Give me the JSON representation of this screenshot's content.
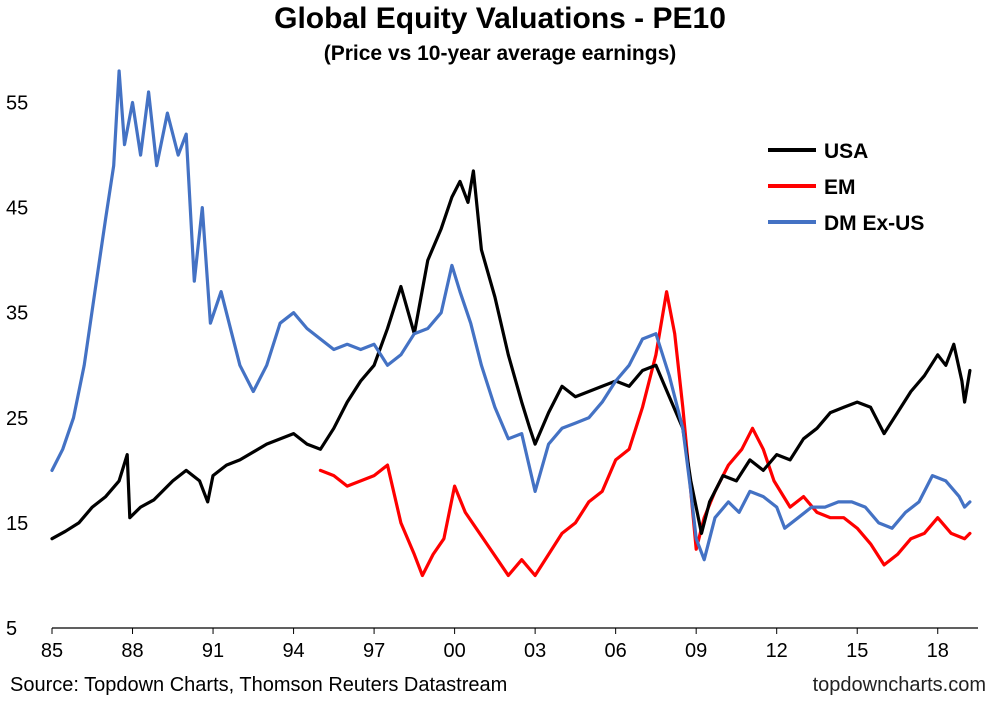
{
  "chart_data": {
    "type": "line",
    "title": "Global Equity Valuations - PE10",
    "subtitle": "(Price vs 10-year average earnings)",
    "source": "Source: Topdown Charts, Thomson Reuters Datastream",
    "brand": "topdowncharts.com",
    "xlabel": "",
    "ylabel": "",
    "xlim": [
      1985,
      2019.5
    ],
    "ylim": [
      5,
      60
    ],
    "x_ticks": [
      1985,
      1988,
      1991,
      1994,
      1997,
      2000,
      2003,
      2006,
      2009,
      2012,
      2015,
      2018
    ],
    "x_tick_labels": [
      "85",
      "88",
      "91",
      "94",
      "97",
      "00",
      "03",
      "06",
      "09",
      "12",
      "15",
      "18"
    ],
    "y_ticks": [
      5,
      15,
      25,
      35,
      45,
      55
    ],
    "grid": false,
    "legend_position": "top-right",
    "series": [
      {
        "name": "USA",
        "color": "#000000",
        "points": [
          [
            1985.0,
            13.5
          ],
          [
            1985.5,
            14.2
          ],
          [
            1986.0,
            15.0
          ],
          [
            1986.5,
            16.5
          ],
          [
            1987.0,
            17.5
          ],
          [
            1987.5,
            19.0
          ],
          [
            1987.8,
            21.5
          ],
          [
            1987.9,
            15.5
          ],
          [
            1988.3,
            16.5
          ],
          [
            1988.8,
            17.2
          ],
          [
            1989.5,
            19.0
          ],
          [
            1990.0,
            20.0
          ],
          [
            1990.5,
            19.0
          ],
          [
            1990.8,
            17.0
          ],
          [
            1991.0,
            19.5
          ],
          [
            1991.5,
            20.5
          ],
          [
            1992.0,
            21.0
          ],
          [
            1993.0,
            22.5
          ],
          [
            1994.0,
            23.5
          ],
          [
            1994.5,
            22.5
          ],
          [
            1995.0,
            22.0
          ],
          [
            1995.5,
            24.0
          ],
          [
            1996.0,
            26.5
          ],
          [
            1996.5,
            28.5
          ],
          [
            1997.0,
            30.0
          ],
          [
            1997.5,
            33.5
          ],
          [
            1998.0,
            37.5
          ],
          [
            1998.5,
            33.0
          ],
          [
            1999.0,
            40.0
          ],
          [
            1999.5,
            43.0
          ],
          [
            1999.9,
            46.0
          ],
          [
            2000.2,
            47.5
          ],
          [
            2000.5,
            45.5
          ],
          [
            2000.7,
            48.5
          ],
          [
            2001.0,
            41.0
          ],
          [
            2001.5,
            36.5
          ],
          [
            2002.0,
            31.0
          ],
          [
            2002.5,
            26.5
          ],
          [
            2002.8,
            24.0
          ],
          [
            2003.0,
            22.5
          ],
          [
            2003.5,
            25.5
          ],
          [
            2004.0,
            28.0
          ],
          [
            2004.5,
            27.0
          ],
          [
            2005.0,
            27.5
          ],
          [
            2005.5,
            28.0
          ],
          [
            2006.0,
            28.5
          ],
          [
            2006.5,
            28.0
          ],
          [
            2007.0,
            29.5
          ],
          [
            2007.5,
            30.0
          ],
          [
            2008.0,
            27.0
          ],
          [
            2008.5,
            24.0
          ],
          [
            2008.8,
            19.0
          ],
          [
            2009.2,
            14.0
          ],
          [
            2009.5,
            17.0
          ],
          [
            2010.0,
            19.5
          ],
          [
            2010.5,
            19.0
          ],
          [
            2011.0,
            21.0
          ],
          [
            2011.5,
            20.0
          ],
          [
            2012.0,
            21.5
          ],
          [
            2012.5,
            21.0
          ],
          [
            2013.0,
            23.0
          ],
          [
            2013.5,
            24.0
          ],
          [
            2014.0,
            25.5
          ],
          [
            2014.5,
            26.0
          ],
          [
            2015.0,
            26.5
          ],
          [
            2015.5,
            26.0
          ],
          [
            2016.0,
            23.5
          ],
          [
            2016.5,
            25.5
          ],
          [
            2017.0,
            27.5
          ],
          [
            2017.5,
            29.0
          ],
          [
            2018.0,
            31.0
          ],
          [
            2018.3,
            30.0
          ],
          [
            2018.6,
            32.0
          ],
          [
            2018.9,
            28.5
          ],
          [
            2019.0,
            26.5
          ],
          [
            2019.2,
            29.5
          ]
        ]
      },
      {
        "name": "EM",
        "color": "#ff0000",
        "points": [
          [
            1995.0,
            20.0
          ],
          [
            1995.5,
            19.5
          ],
          [
            1996.0,
            18.5
          ],
          [
            1996.5,
            19.0
          ],
          [
            1997.0,
            19.5
          ],
          [
            1997.5,
            20.5
          ],
          [
            1998.0,
            15.0
          ],
          [
            1998.5,
            12.0
          ],
          [
            1998.8,
            10.0
          ],
          [
            1999.2,
            12.0
          ],
          [
            1999.6,
            13.5
          ],
          [
            2000.0,
            18.5
          ],
          [
            2000.4,
            16.0
          ],
          [
            2000.8,
            14.5
          ],
          [
            2001.2,
            13.0
          ],
          [
            2001.6,
            11.5
          ],
          [
            2002.0,
            10.0
          ],
          [
            2002.5,
            11.5
          ],
          [
            2003.0,
            10.0
          ],
          [
            2003.5,
            12.0
          ],
          [
            2004.0,
            14.0
          ],
          [
            2004.5,
            15.0
          ],
          [
            2005.0,
            17.0
          ],
          [
            2005.5,
            18.0
          ],
          [
            2006.0,
            21.0
          ],
          [
            2006.5,
            22.0
          ],
          [
            2007.0,
            26.0
          ],
          [
            2007.5,
            31.0
          ],
          [
            2007.9,
            37.0
          ],
          [
            2008.2,
            33.0
          ],
          [
            2008.5,
            26.0
          ],
          [
            2008.8,
            18.0
          ],
          [
            2009.0,
            12.5
          ],
          [
            2009.3,
            15.5
          ],
          [
            2009.7,
            18.0
          ],
          [
            2010.2,
            20.5
          ],
          [
            2010.7,
            22.0
          ],
          [
            2011.1,
            24.0
          ],
          [
            2011.5,
            22.0
          ],
          [
            2011.9,
            19.0
          ],
          [
            2012.5,
            16.5
          ],
          [
            2013.0,
            17.5
          ],
          [
            2013.5,
            16.0
          ],
          [
            2014.0,
            15.5
          ],
          [
            2014.5,
            15.5
          ],
          [
            2015.0,
            14.5
          ],
          [
            2015.5,
            13.0
          ],
          [
            2016.0,
            11.0
          ],
          [
            2016.5,
            12.0
          ],
          [
            2017.0,
            13.5
          ],
          [
            2017.5,
            14.0
          ],
          [
            2018.0,
            15.5
          ],
          [
            2018.5,
            14.0
          ],
          [
            2019.0,
            13.5
          ],
          [
            2019.2,
            14.0
          ]
        ]
      },
      {
        "name": "DM Ex-US",
        "color": "#4472c4",
        "points": [
          [
            1985.0,
            20.0
          ],
          [
            1985.4,
            22.0
          ],
          [
            1985.8,
            25.0
          ],
          [
            1986.2,
            30.0
          ],
          [
            1986.6,
            37.0
          ],
          [
            1987.0,
            44.0
          ],
          [
            1987.3,
            49.0
          ],
          [
            1987.5,
            58.0
          ],
          [
            1987.7,
            51.0
          ],
          [
            1988.0,
            55.0
          ],
          [
            1988.3,
            50.0
          ],
          [
            1988.6,
            56.0
          ],
          [
            1988.9,
            49.0
          ],
          [
            1989.3,
            54.0
          ],
          [
            1989.7,
            50.0
          ],
          [
            1990.0,
            52.0
          ],
          [
            1990.3,
            38.0
          ],
          [
            1990.6,
            45.0
          ],
          [
            1990.9,
            34.0
          ],
          [
            1991.3,
            37.0
          ],
          [
            1991.7,
            33.0
          ],
          [
            1992.0,
            30.0
          ],
          [
            1992.5,
            27.5
          ],
          [
            1993.0,
            30.0
          ],
          [
            1993.5,
            34.0
          ],
          [
            1994.0,
            35.0
          ],
          [
            1994.5,
            33.5
          ],
          [
            1995.0,
            32.5
          ],
          [
            1995.5,
            31.5
          ],
          [
            1996.0,
            32.0
          ],
          [
            1996.5,
            31.5
          ],
          [
            1997.0,
            32.0
          ],
          [
            1997.5,
            30.0
          ],
          [
            1998.0,
            31.0
          ],
          [
            1998.5,
            33.0
          ],
          [
            1999.0,
            33.5
          ],
          [
            1999.5,
            35.0
          ],
          [
            1999.9,
            39.5
          ],
          [
            2000.2,
            37.0
          ],
          [
            2000.6,
            34.0
          ],
          [
            2001.0,
            30.0
          ],
          [
            2001.5,
            26.0
          ],
          [
            2002.0,
            23.0
          ],
          [
            2002.5,
            23.5
          ],
          [
            2003.0,
            18.0
          ],
          [
            2003.5,
            22.5
          ],
          [
            2004.0,
            24.0
          ],
          [
            2004.5,
            24.5
          ],
          [
            2005.0,
            25.0
          ],
          [
            2005.5,
            26.5
          ],
          [
            2006.0,
            28.5
          ],
          [
            2006.5,
            30.0
          ],
          [
            2007.0,
            32.5
          ],
          [
            2007.5,
            33.0
          ],
          [
            2008.0,
            29.0
          ],
          [
            2008.5,
            24.0
          ],
          [
            2008.8,
            18.0
          ],
          [
            2009.0,
            13.5
          ],
          [
            2009.3,
            11.5
          ],
          [
            2009.7,
            15.5
          ],
          [
            2010.2,
            17.0
          ],
          [
            2010.6,
            16.0
          ],
          [
            2011.0,
            18.0
          ],
          [
            2011.5,
            17.5
          ],
          [
            2012.0,
            16.5
          ],
          [
            2012.3,
            14.5
          ],
          [
            2012.8,
            15.5
          ],
          [
            2013.3,
            16.5
          ],
          [
            2013.8,
            16.5
          ],
          [
            2014.3,
            17.0
          ],
          [
            2014.8,
            17.0
          ],
          [
            2015.3,
            16.5
          ],
          [
            2015.8,
            15.0
          ],
          [
            2016.3,
            14.5
          ],
          [
            2016.8,
            16.0
          ],
          [
            2017.3,
            17.0
          ],
          [
            2017.8,
            19.5
          ],
          [
            2018.3,
            19.0
          ],
          [
            2018.8,
            17.5
          ],
          [
            2019.0,
            16.5
          ],
          [
            2019.2,
            17.0
          ]
        ]
      }
    ]
  }
}
